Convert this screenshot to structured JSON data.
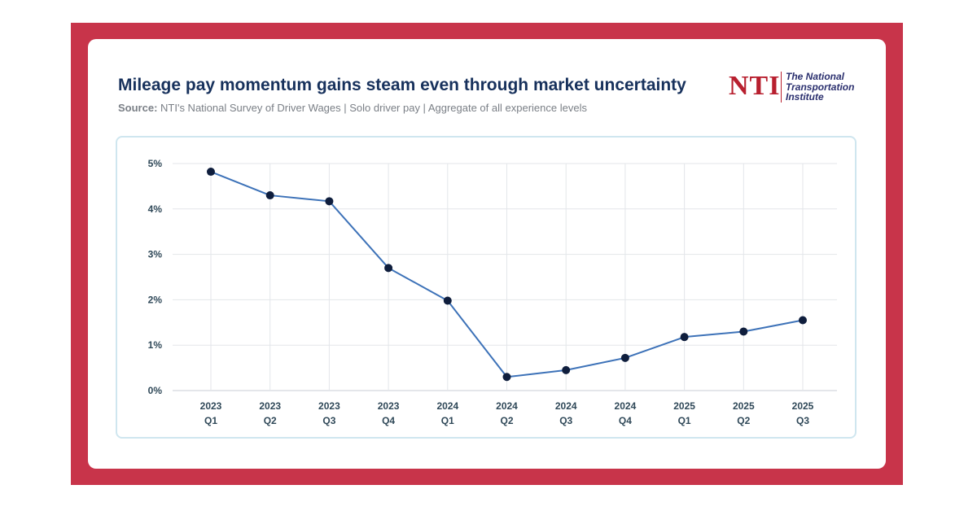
{
  "title": "Mileage pay momentum gains steam even through market uncertainty",
  "subtitle": {
    "label": "Source:",
    "text": " NTI's National Survey of Driver Wages | Solo driver pay | Aggregate of all experience levels"
  },
  "logo": {
    "mark": "NTI",
    "lines": [
      "The National",
      "Transportation",
      "Institute"
    ]
  },
  "colors": {
    "frame": "#c8344a",
    "line": "#3d72b8",
    "point": "#0f1e3d",
    "grid": "#e3e6ea"
  },
  "chart_data": {
    "type": "line",
    "categories": [
      [
        "2023",
        "Q1"
      ],
      [
        "2023",
        "Q2"
      ],
      [
        "2023",
        "Q3"
      ],
      [
        "2023",
        "Q4"
      ],
      [
        "2024",
        "Q1"
      ],
      [
        "2024",
        "Q2"
      ],
      [
        "2024",
        "Q3"
      ],
      [
        "2024",
        "Q4"
      ],
      [
        "2025",
        "Q1"
      ],
      [
        "2025",
        "Q2"
      ],
      [
        "2025",
        "Q3"
      ]
    ],
    "values": [
      4.82,
      4.3,
      4.17,
      2.7,
      1.98,
      0.3,
      0.45,
      0.72,
      1.18,
      1.3,
      1.55
    ],
    "y_ticks": [
      0,
      1,
      2,
      3,
      4,
      5
    ],
    "y_tick_labels": [
      "0%",
      "1%",
      "2%",
      "3%",
      "4%",
      "5%"
    ],
    "ylim": [
      0,
      5
    ],
    "grid": true,
    "title": "Mileage pay momentum gains steam even through market uncertainty",
    "xlabel": "",
    "ylabel": ""
  }
}
